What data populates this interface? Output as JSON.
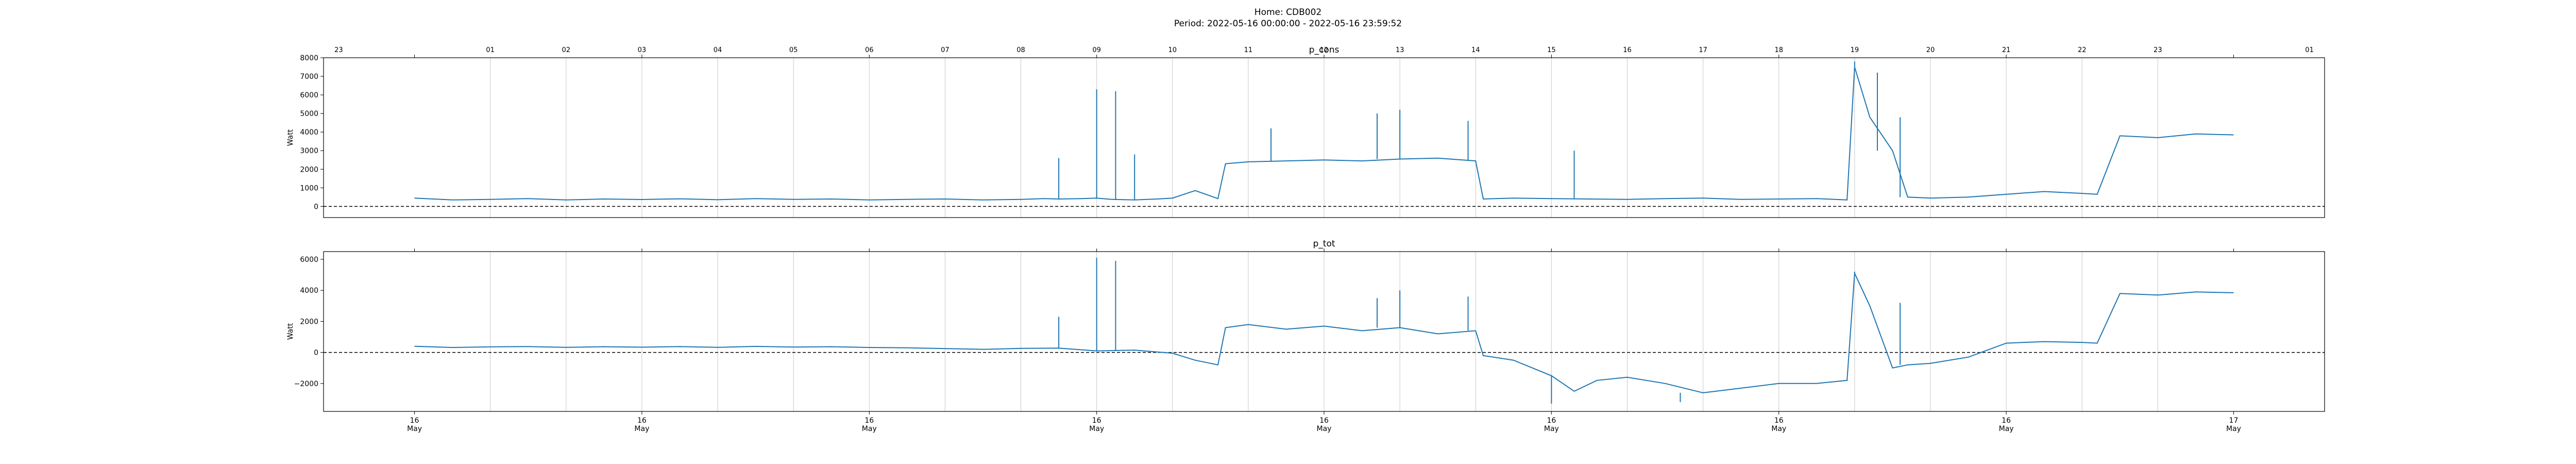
{
  "figure": {
    "title": "Home: CDB002",
    "subtitle": "Period: 2022-05-16 00:00:00 - 2022-05-16 23:59:52",
    "line_color": "#1f77b4",
    "zero_line_color": "#000000",
    "grid_color": "#c8c8c8",
    "top_hour_ticks": [
      "23",
      "01",
      "02",
      "03",
      "04",
      "05",
      "06",
      "07",
      "08",
      "09",
      "10",
      "11",
      "12",
      "13",
      "14",
      "15",
      "16",
      "17",
      "18",
      "19",
      "20",
      "21",
      "22",
      "23",
      "01"
    ],
    "bottom_tick_labels": [
      {
        "day": "16",
        "month": "May"
      },
      {
        "day": "16",
        "month": "May"
      },
      {
        "day": "16",
        "month": "May"
      },
      {
        "day": "16",
        "month": "May"
      },
      {
        "day": "16",
        "month": "May"
      },
      {
        "day": "16",
        "month": "May"
      },
      {
        "day": "16",
        "month": "May"
      },
      {
        "day": "16",
        "month": "May"
      },
      {
        "day": "17",
        "month": "May"
      }
    ]
  },
  "chart_data": [
    {
      "type": "line",
      "title": "p_cons",
      "xlabel": "",
      "ylabel": "Watt",
      "x_unit": "hour of day (2022-05-16)",
      "xlim": [
        -1.2,
        25.2
      ],
      "ylim": [
        -600,
        8000
      ],
      "yticks": [
        0,
        1000,
        2000,
        3000,
        4000,
        5000,
        6000,
        7000,
        8000
      ],
      "grid": "vertical only",
      "reference_line": {
        "y": 0,
        "style": "dashed"
      },
      "x": [
        0,
        0.5,
        1,
        1.5,
        2,
        2.5,
        3,
        3.5,
        4,
        4.5,
        5,
        5.5,
        6,
        6.5,
        7,
        7.5,
        8,
        8.3,
        8.5,
        8.8,
        9,
        9.2,
        9.5,
        9.8,
        10,
        10.3,
        10.6,
        10.7,
        11,
        11.5,
        12,
        12.5,
        13,
        13.5,
        14,
        14.1,
        14.5,
        15,
        15.5,
        16,
        16.5,
        17,
        17.5,
        18,
        18.5,
        18.9,
        19,
        19.2,
        19.5,
        19.7,
        20,
        20.5,
        21,
        21.5,
        22,
        22.2,
        22.5,
        23,
        23.5,
        24
      ],
      "series": [
        {
          "values": [
            450,
            350,
            380,
            420,
            350,
            400,
            370,
            410,
            360,
            420,
            380,
            400,
            350,
            380,
            400,
            350,
            380,
            420,
            400,
            420,
            450,
            380,
            350,
            400,
            450,
            850,
            420,
            2300,
            2400,
            2450,
            2500,
            2450,
            2550,
            2600,
            2450,
            400,
            450,
            420,
            400,
            380,
            420,
            450,
            380,
            400,
            420,
            350,
            7500,
            4800,
            3000,
            500,
            450,
            500,
            650,
            800,
            700,
            650,
            3800,
            3700,
            3900,
            3850
          ],
          "spikes": [
            {
              "x": 8.5,
              "y": 2600
            },
            {
              "x": 9,
              "y": 6300
            },
            {
              "x": 9.25,
              "y": 6200
            },
            {
              "x": 9.5,
              "y": 2800
            },
            {
              "x": 11.3,
              "y": 4200
            },
            {
              "x": 12.7,
              "y": 5000
            },
            {
              "x": 13,
              "y": 5200
            },
            {
              "x": 13.9,
              "y": 4600
            },
            {
              "x": 15.3,
              "y": 3000
            },
            {
              "x": 19,
              "y": 7800
            },
            {
              "x": 19.3,
              "y": 7200
            },
            {
              "x": 19.6,
              "y": 4800
            }
          ]
        }
      ]
    },
    {
      "type": "line",
      "title": "p_tot",
      "xlabel": "",
      "ylabel": "Watt",
      "x_unit": "hour of day (2022-05-16)",
      "xlim": [
        -1.2,
        25.2
      ],
      "ylim": [
        -3800,
        6500
      ],
      "yticks": [
        -2000,
        0,
        2000,
        4000,
        6000
      ],
      "grid": "vertical only",
      "reference_line": {
        "y": 0,
        "style": "dashed"
      },
      "x": [
        0,
        0.5,
        1,
        1.5,
        2,
        2.5,
        3,
        3.5,
        4,
        4.5,
        5,
        5.5,
        6,
        6.5,
        7,
        7.5,
        8,
        8.5,
        9,
        9.5,
        10,
        10.3,
        10.6,
        10.7,
        11,
        11.5,
        12,
        12.5,
        13,
        13.5,
        14,
        14.1,
        14.5,
        15,
        15.3,
        15.6,
        16,
        16.5,
        17,
        17.5,
        18,
        18.5,
        18.9,
        19,
        19.2,
        19.5,
        19.7,
        20,
        20.5,
        21,
        21.5,
        22,
        22.2,
        22.5,
        23,
        23.5,
        24
      ],
      "series": [
        {
          "values": [
            400,
            320,
            360,
            380,
            330,
            370,
            340,
            380,
            330,
            390,
            350,
            370,
            320,
            300,
            250,
            200,
            260,
            280,
            100,
            150,
            -50,
            -500,
            -800,
            1600,
            1800,
            1500,
            1700,
            1400,
            1600,
            1200,
            1400,
            -200,
            -500,
            -1500,
            -2500,
            -1800,
            -1600,
            -2000,
            -2600,
            -2300,
            -2000,
            -2000,
            -1800,
            5100,
            3000,
            -1000,
            -800,
            -700,
            -300,
            600,
            700,
            650,
            600,
            3800,
            3700,
            3900,
            3850
          ],
          "spikes": [
            {
              "x": 8.5,
              "y": 2300
            },
            {
              "x": 9,
              "y": 6100
            },
            {
              "x": 9.25,
              "y": 5900
            },
            {
              "x": 12.7,
              "y": 3500
            },
            {
              "x": 13,
              "y": 4000
            },
            {
              "x": 13.9,
              "y": 3600
            },
            {
              "x": 15,
              "y": -3300
            },
            {
              "x": 16.7,
              "y": -3200
            },
            {
              "x": 19,
              "y": 5200
            },
            {
              "x": 19.6,
              "y": 3200
            }
          ]
        }
      ]
    }
  ]
}
